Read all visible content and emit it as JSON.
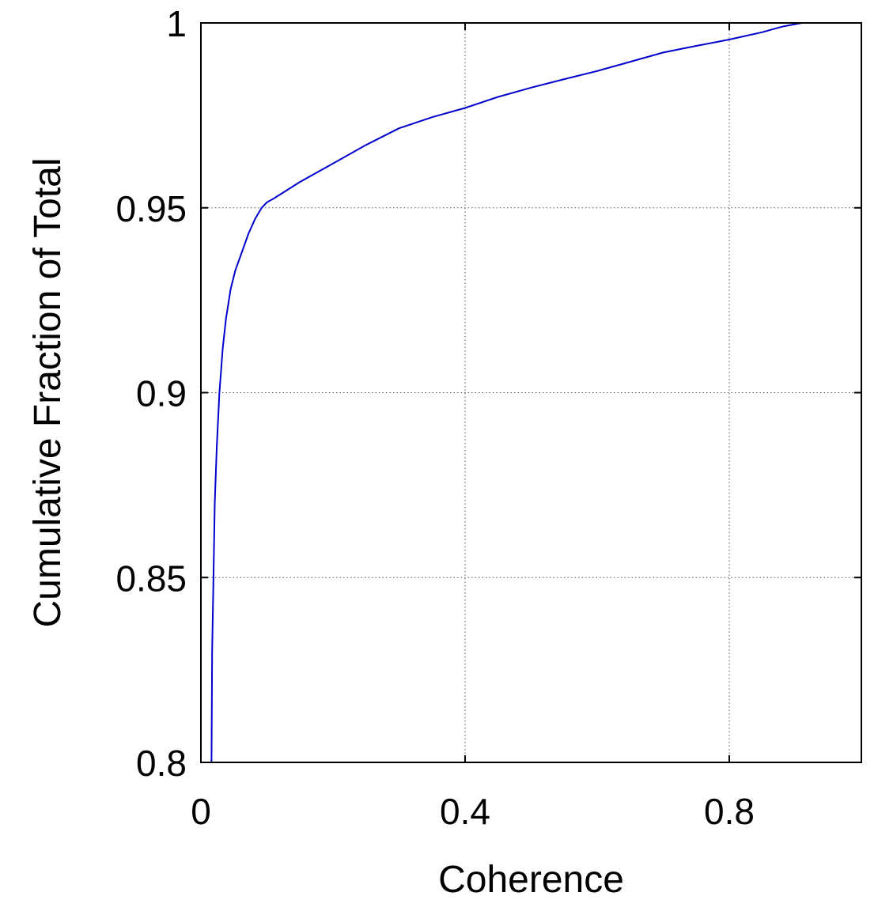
{
  "chart_data": {
    "type": "line",
    "xlabel": "Coherence",
    "ylabel": "Cumulative Fraction of Total",
    "xlim": [
      0,
      1
    ],
    "ylim": [
      0.8,
      1
    ],
    "grid": true,
    "x_ticks": [
      0,
      0.4,
      0.8
    ],
    "x_tick_labels": [
      "0",
      "0.4",
      "0.8"
    ],
    "y_ticks": [
      0.8,
      0.85,
      0.9,
      0.95,
      1
    ],
    "y_tick_labels": [
      "0.8",
      "0.85",
      "0.9",
      "0.95",
      "1"
    ],
    "series": [
      {
        "color": "#0000cc",
        "x": [
          0.016,
          0.017,
          0.019,
          0.021,
          0.024,
          0.028,
          0.033,
          0.038,
          0.045,
          0.052,
          0.062,
          0.072,
          0.082,
          0.092,
          0.1,
          0.11,
          0.15,
          0.2,
          0.25,
          0.3,
          0.35,
          0.4,
          0.45,
          0.5,
          0.55,
          0.6,
          0.65,
          0.7,
          0.75,
          0.8,
          0.85,
          0.88,
          0.91,
          0.93
        ],
        "y": [
          0.8,
          0.83,
          0.85,
          0.87,
          0.885,
          0.9,
          0.912,
          0.92,
          0.928,
          0.933,
          0.938,
          0.943,
          0.947,
          0.95,
          0.9515,
          0.9525,
          0.957,
          0.962,
          0.967,
          0.9715,
          0.9745,
          0.977,
          0.98,
          0.9825,
          0.9848,
          0.987,
          0.9895,
          0.992,
          0.9938,
          0.9955,
          0.9975,
          0.999,
          1.0,
          1.0
        ]
      }
    ]
  }
}
